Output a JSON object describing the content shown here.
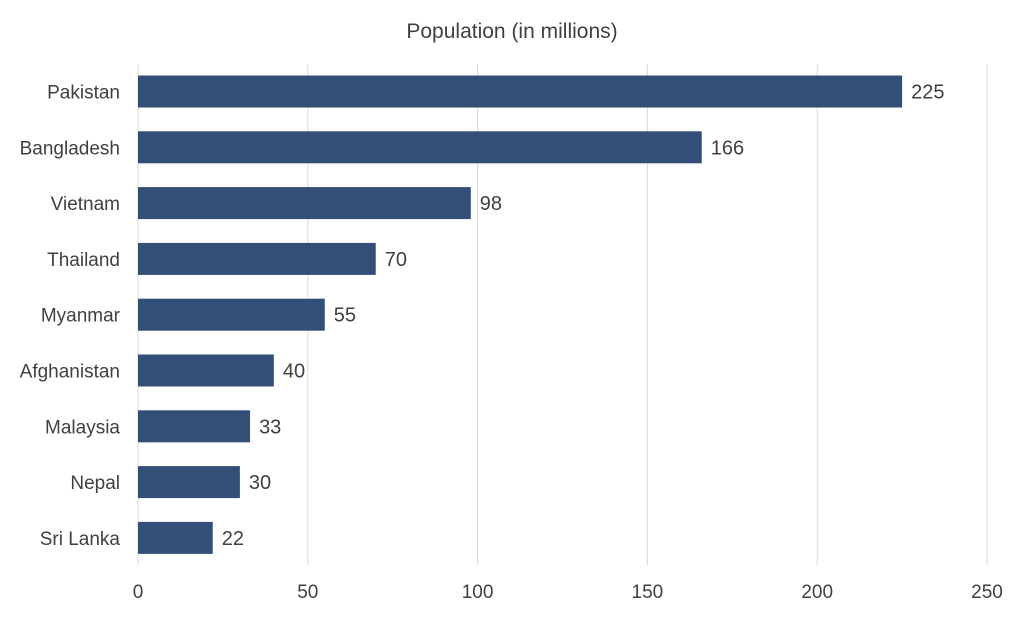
{
  "chart_data": {
    "type": "bar",
    "orientation": "horizontal",
    "title": "Population (in millions)",
    "xlabel": "",
    "ylabel": "",
    "categories": [
      "Pakistan",
      "Bangladesh",
      "Vietnam",
      "Thailand",
      "Myanmar",
      "Afghanistan",
      "Malaysia",
      "Nepal",
      "Sri Lanka"
    ],
    "values": [
      225,
      166,
      98,
      70,
      55,
      40,
      33,
      30,
      22
    ],
    "xlim": [
      0,
      250
    ],
    "xticks": [
      0,
      50,
      100,
      150,
      200,
      250
    ],
    "grid": true,
    "legend": "none",
    "data_labels": true,
    "colors": {
      "bar": "#334f77",
      "grid": "#d9d9d9",
      "text": "#404040"
    }
  }
}
